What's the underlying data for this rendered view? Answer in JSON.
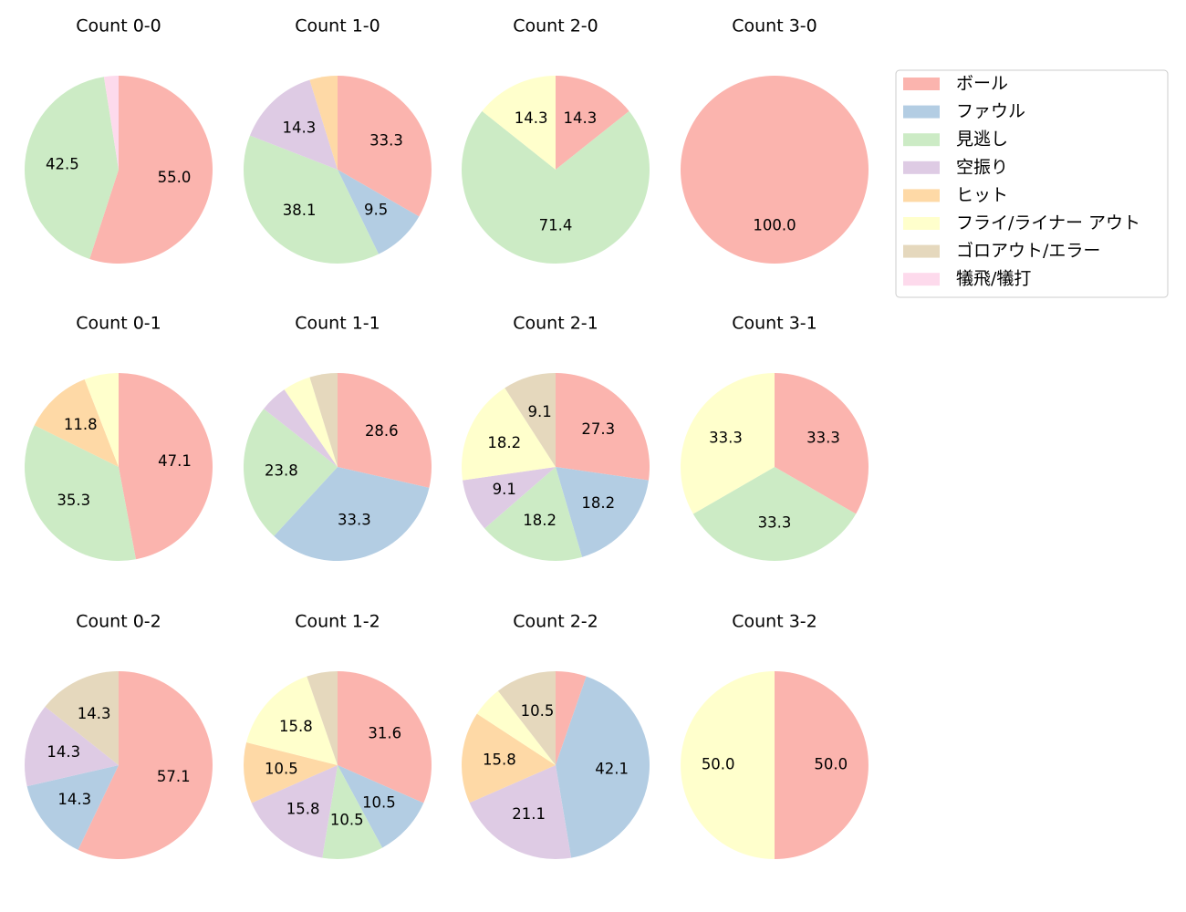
{
  "legend": {
    "labels": [
      "ボール",
      "ファウル",
      "見逃し",
      "空振り",
      "ヒット",
      "フライ/ライナー アウト",
      "ゴロアウト/エラー",
      "犠飛/犠打"
    ],
    "colors": [
      "#fbb4ae",
      "#b3cde3",
      "#ccebc5",
      "#decbe4",
      "#fed9a6",
      "#ffffcc",
      "#e5d8bd",
      "#fddaec"
    ]
  },
  "chart_data": [
    {
      "type": "pie",
      "title": "Count 0-0",
      "values": [
        55.0,
        0,
        42.5,
        0,
        0,
        0,
        0,
        2.5
      ],
      "value_labels": [
        "55.0",
        null,
        "42.5",
        null,
        null,
        null,
        null,
        null
      ]
    },
    {
      "type": "pie",
      "title": "Count 1-0",
      "values": [
        33.3,
        9.5,
        38.1,
        14.3,
        4.8,
        0,
        0,
        0
      ],
      "value_labels": [
        "33.3",
        "9.5",
        "38.1",
        "14.3",
        null,
        null,
        null,
        null
      ]
    },
    {
      "type": "pie",
      "title": "Count 2-0",
      "values": [
        14.3,
        0,
        71.4,
        0,
        0,
        14.3,
        0,
        0
      ],
      "value_labels": [
        "14.3",
        null,
        "71.4",
        null,
        null,
        "14.3",
        null,
        null
      ]
    },
    {
      "type": "pie",
      "title": "Count 3-0",
      "values": [
        100.0,
        0,
        0,
        0,
        0,
        0,
        0,
        0
      ],
      "value_labels": [
        "100.0",
        null,
        null,
        null,
        null,
        null,
        null,
        null
      ]
    },
    {
      "type": "pie",
      "title": "Count 0-1",
      "values": [
        47.1,
        0,
        35.3,
        0,
        11.8,
        5.9,
        0,
        0
      ],
      "value_labels": [
        "47.1",
        null,
        "35.3",
        null,
        "11.8",
        null,
        null,
        null
      ]
    },
    {
      "type": "pie",
      "title": "Count 1-1",
      "values": [
        28.6,
        33.3,
        23.8,
        4.8,
        0,
        4.8,
        4.8,
        0
      ],
      "value_labels": [
        "28.6",
        "33.3",
        "23.8",
        null,
        null,
        null,
        null,
        null
      ]
    },
    {
      "type": "pie",
      "title": "Count 2-1",
      "values": [
        27.3,
        18.2,
        18.2,
        9.1,
        0,
        18.2,
        9.1,
        0
      ],
      "value_labels": [
        "27.3",
        "18.2",
        "18.2",
        "9.1",
        null,
        "18.2",
        "9.1",
        null
      ]
    },
    {
      "type": "pie",
      "title": "Count 3-1",
      "values": [
        33.3,
        0,
        33.3,
        0,
        0,
        33.3,
        0,
        0
      ],
      "value_labels": [
        "33.3",
        null,
        "33.3",
        null,
        null,
        "33.3",
        null,
        null
      ]
    },
    {
      "type": "pie",
      "title": "Count 0-2",
      "values": [
        57.1,
        14.3,
        0,
        14.3,
        0,
        0,
        14.3,
        0
      ],
      "value_labels": [
        "57.1",
        "14.3",
        null,
        "14.3",
        null,
        null,
        "14.3",
        null
      ]
    },
    {
      "type": "pie",
      "title": "Count 1-2",
      "values": [
        31.6,
        10.5,
        10.5,
        15.8,
        10.5,
        15.8,
        5.3,
        0
      ],
      "value_labels": [
        "31.6",
        "10.5",
        "10.5",
        "15.8",
        "10.5",
        "15.8",
        null,
        null
      ]
    },
    {
      "type": "pie",
      "title": "Count 2-2",
      "values": [
        5.3,
        42.1,
        0,
        21.1,
        15.8,
        5.3,
        10.5,
        0
      ],
      "value_labels": [
        null,
        "42.1",
        null,
        "21.1",
        "15.8",
        null,
        "10.5",
        null
      ]
    },
    {
      "type": "pie",
      "title": "Count 3-2",
      "values": [
        50.0,
        0,
        0,
        0,
        0,
        50.0,
        0,
        0
      ],
      "value_labels": [
        "50.0",
        null,
        null,
        null,
        null,
        "50.0",
        null,
        null
      ]
    }
  ]
}
